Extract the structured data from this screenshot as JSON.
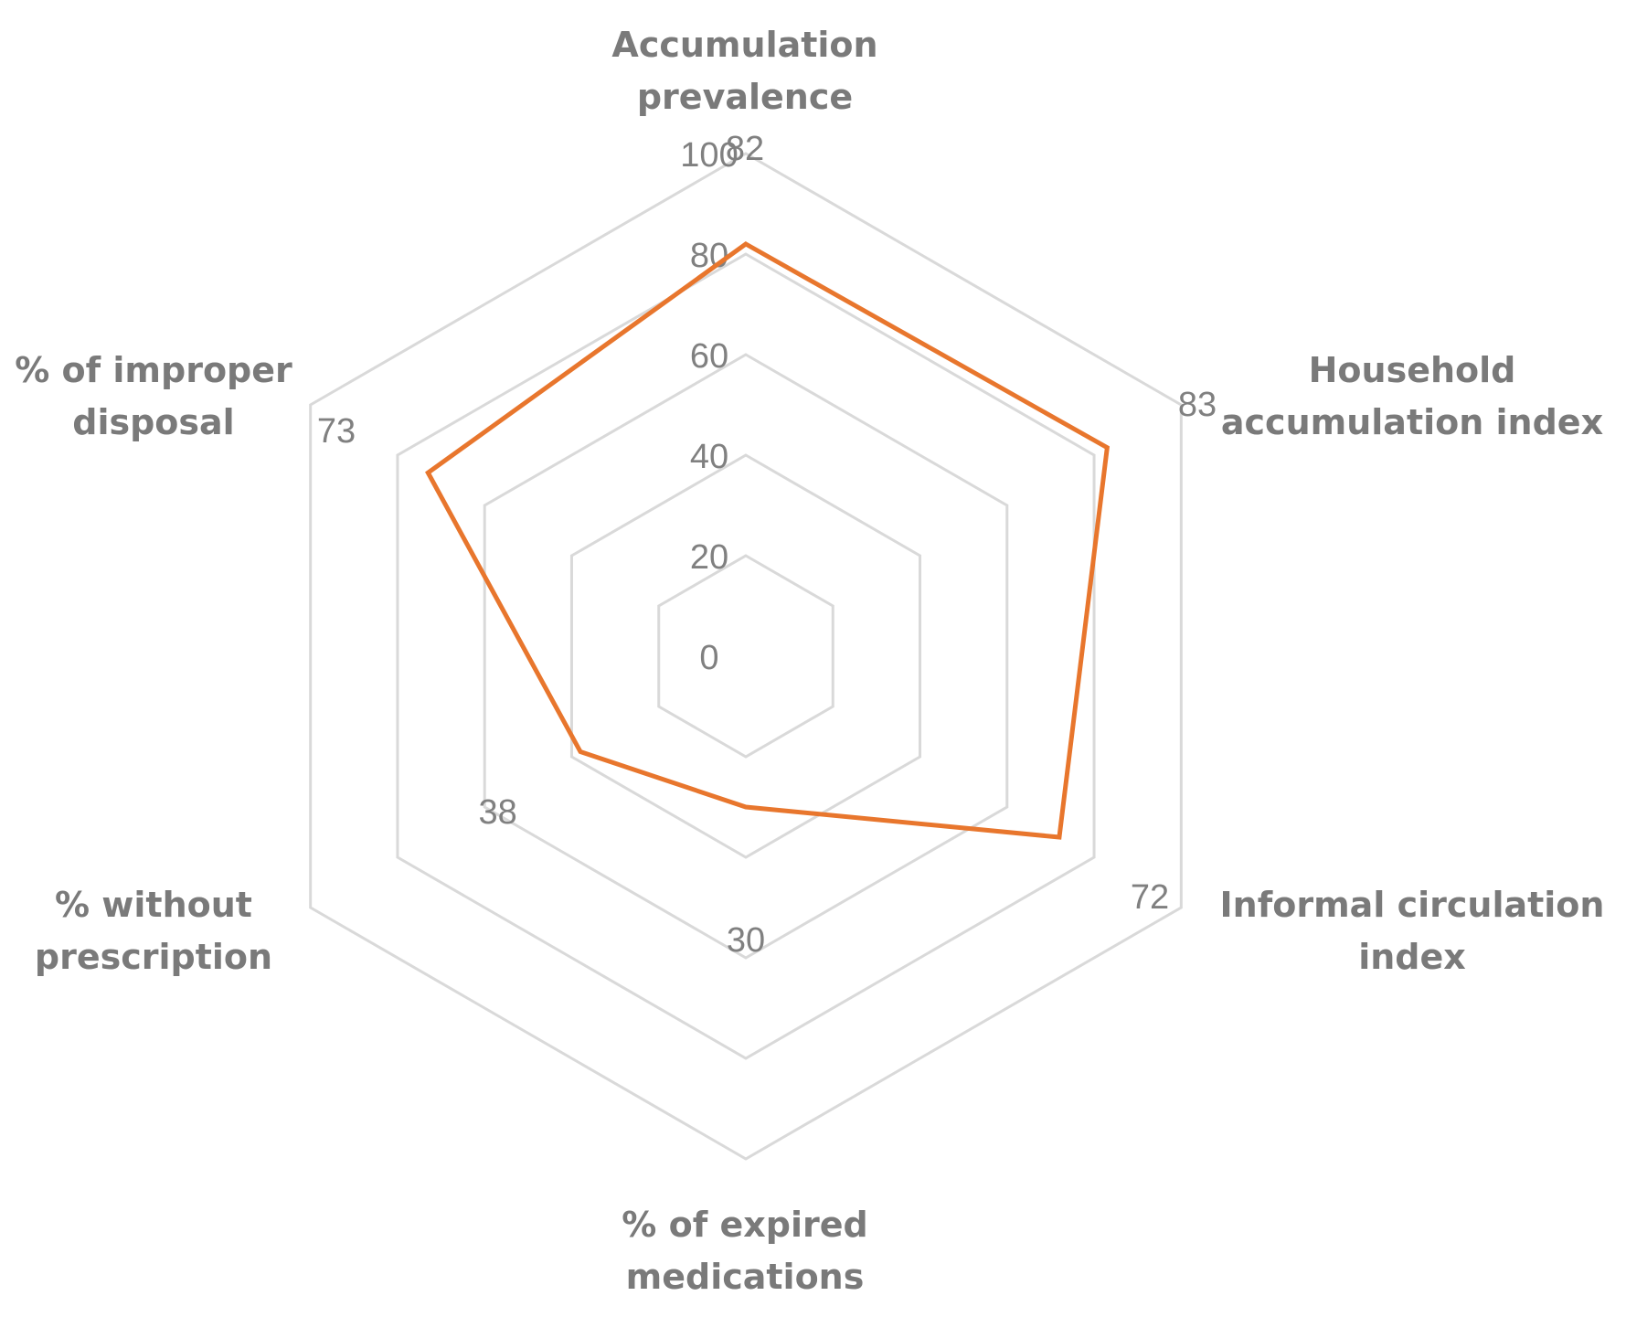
{
  "chart_data": {
    "type": "radar",
    "categories": [
      [
        "Accumulation",
        "prevalence"
      ],
      [
        "Household",
        "accumulation index"
      ],
      [
        "Informal circulation",
        "index"
      ],
      [
        "% of expired",
        "medications"
      ],
      [
        "% without",
        "prescription"
      ],
      [
        "% of improper",
        "disposal"
      ]
    ],
    "series": [
      {
        "values": [
          82,
          83,
          72,
          30,
          38,
          73
        ]
      }
    ],
    "data_labels": [
      "82",
      "83",
      "72",
      "30",
      "38",
      "73"
    ],
    "r_ticks": [
      "0",
      "20",
      "40",
      "60",
      "80",
      "100"
    ],
    "r_range": [
      0,
      100
    ],
    "grid": true,
    "legend": "none",
    "colors": {
      "series": "#e8762d",
      "grid": "#d9d9d9",
      "text": "#7f7f7f"
    }
  }
}
